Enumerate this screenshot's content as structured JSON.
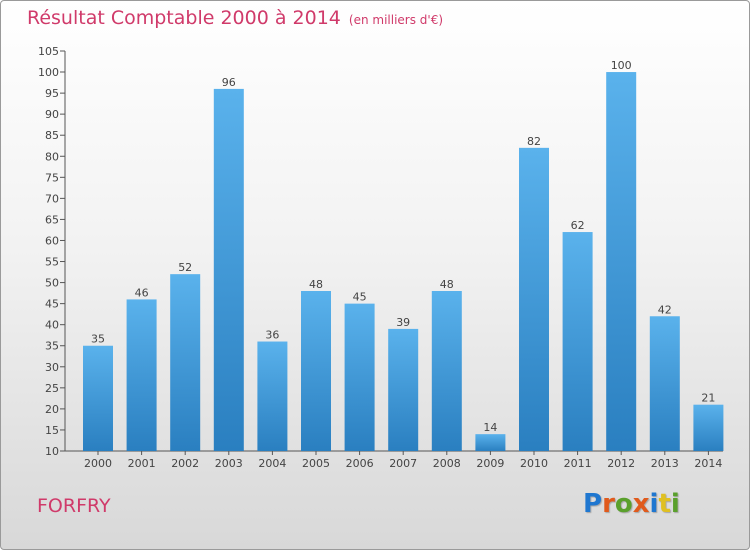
{
  "header": {
    "title": "Résultat Comptable 2000 à 2014",
    "unit": "(en milliers d'€)"
  },
  "footer": {
    "commune": "FORFRY",
    "logo_text": "Proxiti",
    "logo_letter_colors": [
      "#1f77d0",
      "#e05a1c",
      "#5aa02c",
      "#e05a1c",
      "#1f77d0",
      "#e0c020",
      "#5aa02c"
    ]
  },
  "colors": {
    "title": "#d03a6a",
    "bar_top": "#5ab2ec",
    "bar_bottom": "#2a7fc0",
    "axis": "#555555"
  },
  "chart_data": {
    "type": "bar",
    "title": "Résultat Comptable 2000 à 2014",
    "subtitle": "(en milliers d'€)",
    "xlabel": "",
    "ylabel": "",
    "categories": [
      "2000",
      "2001",
      "2002",
      "2003",
      "2004",
      "2005",
      "2006",
      "2007",
      "2008",
      "2009",
      "2010",
      "2011",
      "2012",
      "2013",
      "2014"
    ],
    "values": [
      35,
      46,
      52,
      96,
      36,
      48,
      45,
      39,
      48,
      14,
      82,
      62,
      100,
      42,
      21
    ],
    "ylim": [
      10,
      105
    ],
    "yticks": [
      10,
      15,
      20,
      25,
      30,
      35,
      40,
      45,
      50,
      55,
      60,
      65,
      70,
      75,
      80,
      85,
      90,
      95,
      100,
      105
    ],
    "grid": false,
    "data_labels": true
  }
}
